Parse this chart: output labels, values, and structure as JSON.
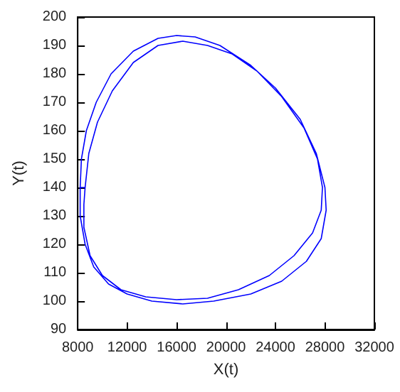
{
  "chart_data": {
    "type": "line",
    "xlabel": "X(t)",
    "ylabel": "Y(t)",
    "xlim": [
      8000,
      32000
    ],
    "xticks": [
      8000,
      12000,
      16000,
      20000,
      24000,
      28000,
      32000
    ],
    "ylim": [
      90,
      200
    ],
    "yticks": [
      90,
      100,
      110,
      120,
      130,
      140,
      150,
      160,
      170,
      180,
      190,
      200
    ],
    "grid": false,
    "marker": "none",
    "line_style": "solid",
    "series": [
      {
        "color": "#0000ff",
        "x": [
          8200,
          8300,
          8700,
          9500,
          10700,
          12500,
          14500,
          16000,
          17500,
          19500,
          22000,
          24000,
          26000,
          27300,
          28000,
          28100,
          27700,
          26500,
          24500,
          22000,
          19000,
          16500,
          14000,
          12000,
          10500,
          9300,
          8600,
          8200,
          8200,
          8600,
          8900,
          9600,
          10800,
          12500,
          14500,
          16500,
          18500,
          20500,
          22500,
          24500,
          26300,
          27400,
          27800,
          27700,
          27000,
          25500,
          23500,
          21000,
          18500,
          16000,
          13500,
          11500,
          10000,
          9000,
          8500,
          8500,
          8600
        ],
        "values": [
          140,
          150,
          160,
          170,
          180,
          188,
          192.5,
          193.5,
          193,
          190,
          183,
          175,
          164,
          152,
          140,
          132,
          122,
          114,
          107,
          102.5,
          100,
          99,
          100,
          102.5,
          106,
          112,
          120,
          130,
          140,
          140,
          152,
          163,
          174,
          184,
          190,
          191.5,
          190,
          187,
          181,
          172,
          161,
          150,
          140,
          132,
          124,
          116,
          109,
          104,
          101,
          100.5,
          101.5,
          104,
          109,
          116,
          126,
          134,
          140
        ]
      }
    ]
  }
}
